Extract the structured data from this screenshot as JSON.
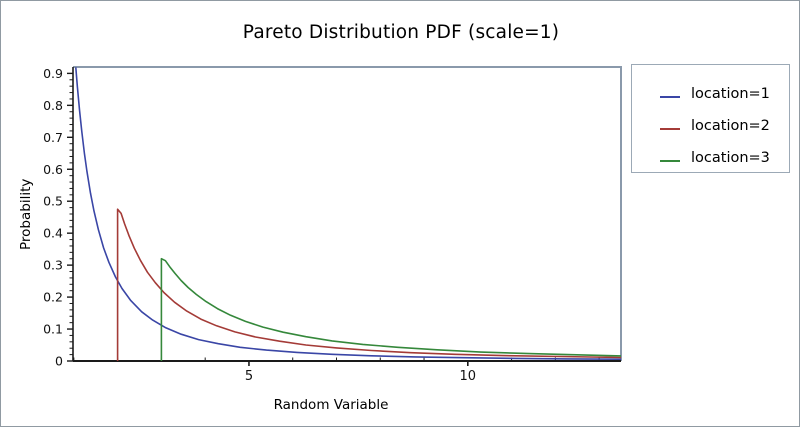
{
  "window_title": "Pareto Distribution PDF (scale=1)",
  "chart_data": {
    "type": "line",
    "title": "Pareto Distribution PDF (scale=1)",
    "xlabel": "Random Variable",
    "ylabel": "Probability",
    "xlim": [
      0.98,
      13.5
    ],
    "ylim": [
      0,
      0.92
    ],
    "grid": false,
    "legend_position": "right",
    "frame_color": "#8a99ab",
    "axis_color": "#1a1a1a",
    "x_major_ticks": {
      "values": [
        5,
        10
      ],
      "labels": [
        "5",
        "10"
      ]
    },
    "x_minor_ticks": [
      1,
      2,
      3,
      4,
      6,
      7,
      8,
      9,
      11,
      12,
      13
    ],
    "y_major_ticks": {
      "values": [
        0,
        0.1,
        0.2,
        0.3,
        0.4,
        0.5,
        0.6,
        0.7,
        0.8,
        0.9
      ],
      "labels": [
        "0",
        "0.1",
        "0.2",
        "0.3",
        "0.4",
        "0.5",
        "0.6",
        "0.7",
        "0.8",
        "0.9"
      ]
    },
    "y_minor_step": 0.02,
    "series": [
      {
        "name": "location=1",
        "location": 1,
        "color": "#3a46a6",
        "points": [
          [
            1.043,
            0.919
          ],
          [
            1.08,
            0.857
          ],
          [
            1.13,
            0.783
          ],
          [
            1.18,
            0.718
          ],
          [
            1.24,
            0.65
          ],
          [
            1.3,
            0.592
          ],
          [
            1.38,
            0.525
          ],
          [
            1.46,
            0.469
          ],
          [
            1.56,
            0.411
          ],
          [
            1.68,
            0.354
          ],
          [
            1.8,
            0.309
          ],
          [
            1.95,
            0.263
          ],
          [
            2.1,
            0.227
          ],
          [
            2.3,
            0.189
          ],
          [
            2.55,
            0.154
          ],
          [
            2.8,
            0.128
          ],
          [
            3.1,
            0.104
          ],
          [
            3.45,
            0.084
          ],
          [
            3.85,
            0.067
          ],
          [
            4.3,
            0.054
          ],
          [
            4.8,
            0.043
          ],
          [
            5.4,
            0.034
          ],
          [
            6.1,
            0.027
          ],
          [
            6.9,
            0.021
          ],
          [
            7.8,
            0.0164
          ],
          [
            8.8,
            0.0129
          ],
          [
            9.9,
            0.0102
          ],
          [
            11.1,
            0.0081
          ],
          [
            12.3,
            0.0066
          ],
          [
            13.5,
            0.0055
          ]
        ]
      },
      {
        "name": "location=2",
        "location": 2,
        "color": "#a43b37",
        "points": [
          [
            2,
            0
          ],
          [
            2,
            0.475
          ],
          [
            2.08,
            0.462
          ],
          [
            2.16,
            0.429
          ],
          [
            2.26,
            0.392
          ],
          [
            2.38,
            0.353
          ],
          [
            2.52,
            0.315
          ],
          [
            2.68,
            0.278
          ],
          [
            2.86,
            0.245
          ],
          [
            3.06,
            0.214
          ],
          [
            3.3,
            0.184
          ],
          [
            3.58,
            0.156
          ],
          [
            3.9,
            0.131
          ],
          [
            4.26,
            0.11
          ],
          [
            4.68,
            0.091
          ],
          [
            5.15,
            0.075
          ],
          [
            5.7,
            0.062
          ],
          [
            6.3,
            0.05
          ],
          [
            7.0,
            0.041
          ],
          [
            7.8,
            0.033
          ],
          [
            8.7,
            0.026
          ],
          [
            9.7,
            0.021
          ],
          [
            10.8,
            0.017
          ],
          [
            12.1,
            0.014
          ],
          [
            13.5,
            0.011
          ]
        ]
      },
      {
        "name": "location=3",
        "location": 3,
        "color": "#35883b",
        "points": [
          [
            3,
            0
          ],
          [
            3,
            0.32
          ],
          [
            3.09,
            0.314
          ],
          [
            3.19,
            0.295
          ],
          [
            3.31,
            0.274
          ],
          [
            3.45,
            0.252
          ],
          [
            3.61,
            0.23
          ],
          [
            3.8,
            0.208
          ],
          [
            4.02,
            0.186
          ],
          [
            4.28,
            0.164
          ],
          [
            4.58,
            0.143
          ],
          [
            4.92,
            0.124
          ],
          [
            5.32,
            0.106
          ],
          [
            5.78,
            0.09
          ],
          [
            6.3,
            0.076
          ],
          [
            6.9,
            0.063
          ],
          [
            7.6,
            0.052
          ],
          [
            8.4,
            0.043
          ],
          [
            9.3,
            0.035
          ],
          [
            10.3,
            0.028
          ],
          [
            11.4,
            0.023
          ],
          [
            12.6,
            0.019
          ],
          [
            13.5,
            0.016
          ]
        ]
      }
    ]
  }
}
